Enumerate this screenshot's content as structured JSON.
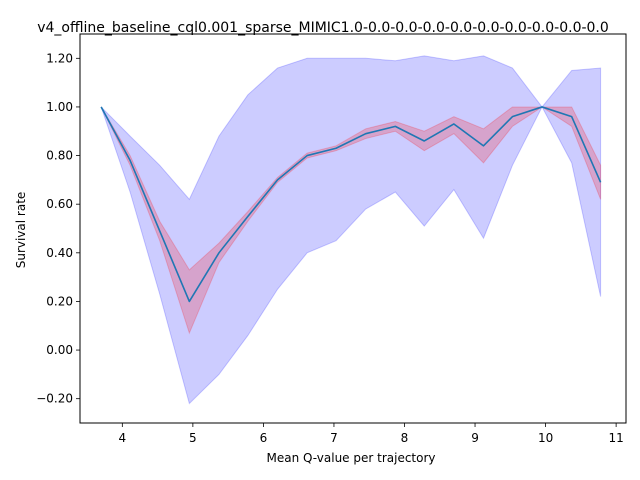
{
  "chart_data": {
    "type": "line",
    "title": "v4_offline_baseline_cql0.001_sparse_MIMIC1.0-0.0-0.0-0.0-0.0-0.0-0.0-0.0-0.0-0.0",
    "xlabel": "Mean Q-value per trajectory",
    "ylabel": "Survival rate",
    "xlim": [
      3.4,
      11.14
    ],
    "ylim": [
      -0.3,
      1.3
    ],
    "xticks": [
      4,
      5,
      6,
      7,
      8,
      9,
      10,
      11
    ],
    "yticks": [
      -0.2,
      0.0,
      0.2,
      0.4,
      0.6,
      0.8,
      1.0,
      1.2
    ],
    "xtick_labels": [
      "4",
      "5",
      "6",
      "7",
      "8",
      "9",
      "10",
      "11"
    ],
    "ytick_labels": [
      "−0.20",
      "0.00",
      "0.20",
      "0.40",
      "0.60",
      "0.80",
      "1.00",
      "1.20"
    ],
    "grid": false,
    "x": [
      3.7,
      4.11,
      4.53,
      4.95,
      5.37,
      5.78,
      6.2,
      6.62,
      7.03,
      7.45,
      7.87,
      8.28,
      8.7,
      9.12,
      9.53,
      9.95,
      10.37,
      10.78
    ],
    "series": [
      {
        "values": [
          1.0,
          0.78,
          0.49,
          0.2,
          0.4,
          0.55,
          0.7,
          0.8,
          0.83,
          0.89,
          0.92,
          0.86,
          0.93,
          0.84,
          0.96,
          1.0,
          0.96,
          0.69
        ],
        "color": "#1f77b4"
      }
    ],
    "bands": [
      {
        "color": "#0000ff",
        "opacity": 0.2,
        "lower": [
          1.0,
          0.65,
          0.23,
          -0.22,
          -0.1,
          0.06,
          0.25,
          0.4,
          0.45,
          0.58,
          0.65,
          0.51,
          0.66,
          0.46,
          0.76,
          1.0,
          0.77,
          0.22
        ],
        "upper": [
          1.0,
          0.88,
          0.76,
          0.62,
          0.88,
          1.05,
          1.16,
          1.2,
          1.2,
          1.2,
          1.19,
          1.21,
          1.19,
          1.21,
          1.16,
          1.0,
          1.15,
          1.16
        ]
      },
      {
        "color": "#ff0000",
        "opacity": 0.2,
        "lower": [
          1.0,
          0.76,
          0.45,
          0.07,
          0.36,
          0.53,
          0.69,
          0.79,
          0.82,
          0.87,
          0.9,
          0.82,
          0.89,
          0.77,
          0.92,
          1.0,
          0.92,
          0.62
        ],
        "upper": [
          1.0,
          0.8,
          0.53,
          0.33,
          0.44,
          0.57,
          0.71,
          0.81,
          0.84,
          0.91,
          0.94,
          0.9,
          0.96,
          0.91,
          1.0,
          1.0,
          1.0,
          0.76
        ]
      }
    ]
  }
}
